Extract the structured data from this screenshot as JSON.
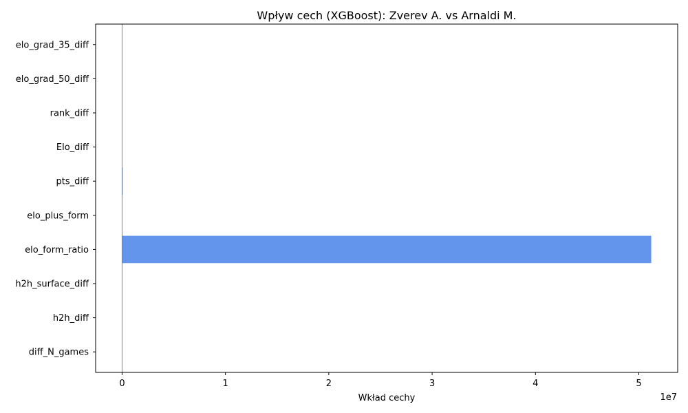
{
  "chart_data": {
    "type": "bar",
    "orientation": "horizontal",
    "title": "Wpływ cech (XGBoost): Zverev A. vs Arnaldi M.",
    "xlabel": "Wkład cechy",
    "ylabel": "",
    "x_offset_label": "1e7",
    "x_scale_factor": 10000000,
    "xlim": [
      -2560000,
      53760000
    ],
    "x_ticks": [
      0,
      10000000,
      20000000,
      30000000,
      40000000,
      50000000
    ],
    "x_tick_labels": [
      "0",
      "1",
      "2",
      "3",
      "4",
      "5"
    ],
    "categories": [
      "elo_grad_35_diff",
      "elo_grad_50_diff",
      "rank_diff",
      "Elo_diff",
      "pts_diff",
      "elo_plus_form",
      "elo_form_ratio",
      "h2h_surface_diff",
      "h2h_diff",
      "diff_N_games"
    ],
    "values": [
      0,
      0,
      0,
      0,
      60000,
      0,
      51200000,
      0,
      0,
      0
    ],
    "bar_color": "#6495ed",
    "zero_line_color": "#808080",
    "grid": false,
    "legend": "none"
  }
}
